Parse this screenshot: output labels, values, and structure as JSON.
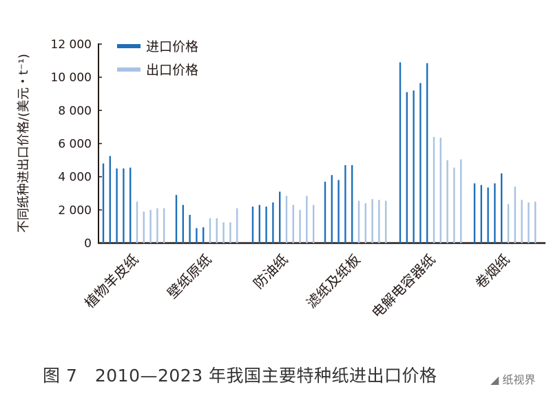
{
  "chart_data": {
    "type": "bar",
    "title": "",
    "ylabel": "不同纸种进出口价格/(美元・t⁻¹)",
    "xlabel": "",
    "ylim": [
      0,
      12000
    ],
    "yticks": [
      "0",
      "2 000",
      "4 000",
      "6 000",
      "8 000",
      "10 000",
      "12 000"
    ],
    "ytick_values": [
      0,
      2000,
      4000,
      6000,
      8000,
      10000,
      12000
    ],
    "grid": false,
    "legend_position": "top-left",
    "categories": [
      "植物羊皮纸",
      "壁纸原纸",
      "防油纸",
      "滤纸及纸板",
      "电解电容器纸",
      "卷烟纸"
    ],
    "series": [
      {
        "name": "进口价格",
        "color": "#1f6fb8",
        "values": [
          [
            4800,
            5250,
            4500,
            4500,
            4550
          ],
          [
            2900,
            2300,
            1700,
            900,
            950
          ],
          [
            2200,
            2300,
            2200,
            2450,
            3100
          ],
          [
            3700,
            4100,
            3800,
            4700,
            4700
          ],
          [
            10900,
            9100,
            9200,
            9650,
            10850
          ],
          [
            3600,
            3500,
            3350,
            3600,
            4200
          ]
        ]
      },
      {
        "name": "出口价格",
        "color": "#a9c2e2",
        "values": [
          [
            2500,
            1900,
            2000,
            2100,
            2100
          ],
          [
            1500,
            1500,
            1250,
            1250,
            2100
          ],
          [
            2850,
            2300,
            2000,
            2850,
            2300
          ],
          [
            2550,
            2400,
            2650,
            2600,
            2550
          ],
          [
            6400,
            6350,
            5000,
            4550,
            5050
          ],
          [
            2350,
            3400,
            2600,
            2450,
            2500
          ]
        ]
      }
    ]
  },
  "caption": "图 7　2010—2023 年我国主要特种纸进出口价格",
  "watermark": "纸视界"
}
